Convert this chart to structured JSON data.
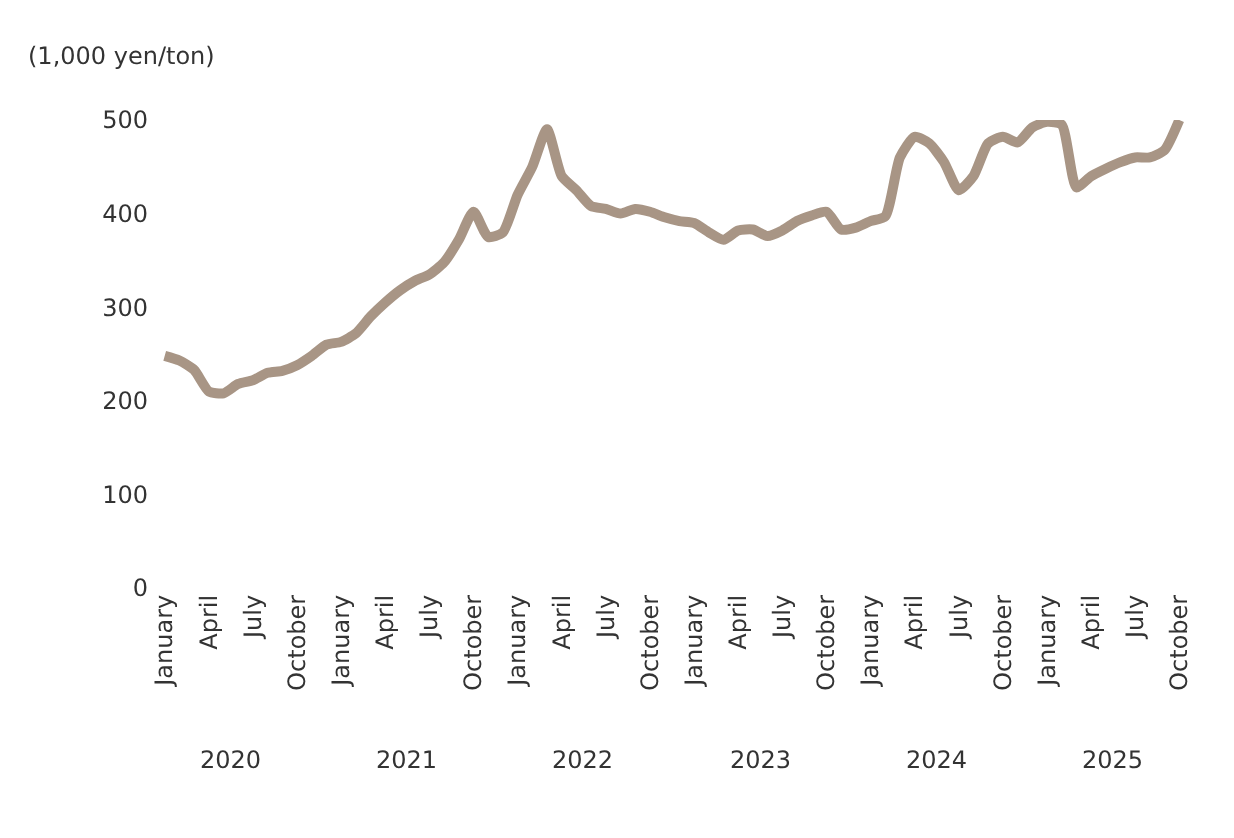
{
  "chart_data": {
    "type": "line",
    "ylabel": "(1,000 yen/ton)",
    "categories": [
      "January",
      null,
      null,
      "April",
      null,
      null,
      "July",
      null,
      null,
      "October",
      null,
      null,
      "January",
      null,
      null,
      "April",
      null,
      null,
      "July",
      null,
      null,
      "October",
      null,
      null,
      "January",
      null,
      null,
      "April",
      null,
      null,
      "July",
      null,
      null,
      "October",
      null,
      null,
      "January",
      null,
      null,
      "April",
      null,
      null,
      "July",
      null,
      null,
      "October",
      null,
      null,
      "January",
      null,
      null,
      "April",
      null,
      null,
      "July",
      null,
      null,
      "October",
      null,
      null,
      "January",
      null,
      null,
      "April",
      null,
      null,
      "July",
      null,
      null,
      "October"
    ],
    "series": [
      {
        "color": "#a89585",
        "values": [
          248,
          243,
          233,
          210,
          208,
          218,
          222,
          230,
          232,
          238,
          248,
          260,
          263,
          272,
          290,
          305,
          318,
          328,
          335,
          348,
          372,
          402,
          375,
          380,
          420,
          450,
          490,
          440,
          425,
          408,
          405,
          400,
          405,
          402,
          396,
          392,
          390,
          380,
          372,
          382,
          383,
          376,
          382,
          392,
          398,
          402,
          383,
          385,
          392,
          397,
          460,
          482,
          475,
          455,
          425,
          440,
          475,
          482,
          476,
          492,
          498,
          495,
          428,
          440,
          448,
          455,
          460,
          460,
          468,
          500
        ]
      }
    ],
    "ylim": [
      0,
      500
    ],
    "yticks": [
      0,
      100,
      200,
      300,
      400,
      500
    ],
    "grid": false,
    "legend": false,
    "annotations": [
      "2020",
      "2021",
      "2022",
      "2023",
      "2024",
      "2025"
    ]
  }
}
